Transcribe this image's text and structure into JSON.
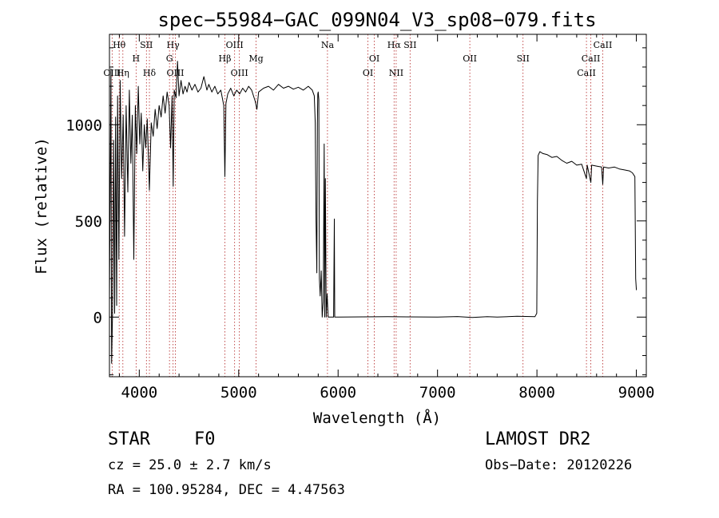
{
  "chart_data": {
    "type": "line",
    "title": "spec−55984−GAC_099N04_V3_sp08−079.fits",
    "xlabel": "Wavelength (Å)",
    "ylabel": "Flux (relative)",
    "xlim": [
      3700,
      9100
    ],
    "ylim": [
      -310,
      1470
    ],
    "xticks": [
      4000,
      5000,
      6000,
      7000,
      8000,
      9000
    ],
    "xtick_labels": [
      "4000",
      "5000",
      "6000",
      "7000",
      "8000",
      "9000"
    ],
    "yticks": [
      0,
      500,
      1000
    ],
    "ytick_labels": [
      "0",
      "500",
      "1000"
    ],
    "grid": false,
    "series": [
      {
        "points": [
          [
            3700,
            80
          ],
          [
            3715,
            1290
          ],
          [
            3722,
            -240
          ],
          [
            3732,
            50
          ],
          [
            3742,
            920
          ],
          [
            3752,
            20
          ],
          [
            3762,
            1040
          ],
          [
            3772,
            60
          ],
          [
            3782,
            1150
          ],
          [
            3795,
            300
          ],
          [
            3808,
            1230
          ],
          [
            3822,
            720
          ],
          [
            3838,
            1050
          ],
          [
            3852,
            420
          ],
          [
            3868,
            1100
          ],
          [
            3885,
            650
          ],
          [
            3900,
            1180
          ],
          [
            3915,
            800
          ],
          [
            3930,
            1050
          ],
          [
            3945,
            300
          ],
          [
            3960,
            1100
          ],
          [
            3975,
            850
          ],
          [
            3990,
            1200
          ],
          [
            4005,
            900
          ],
          [
            4020,
            1060
          ],
          [
            4035,
            760
          ],
          [
            4050,
            1000
          ],
          [
            4065,
            880
          ],
          [
            4080,
            1030
          ],
          [
            4102,
            660
          ],
          [
            4120,
            1010
          ],
          [
            4140,
            940
          ],
          [
            4160,
            1080
          ],
          [
            4180,
            980
          ],
          [
            4200,
            1100
          ],
          [
            4220,
            1040
          ],
          [
            4240,
            1150
          ],
          [
            4260,
            1060
          ],
          [
            4280,
            1170
          ],
          [
            4300,
            1100
          ],
          [
            4315,
            880
          ],
          [
            4330,
            1150
          ],
          [
            4341,
            680
          ],
          [
            4352,
            1180
          ],
          [
            4370,
            1140
          ],
          [
            4385,
            1330
          ],
          [
            4400,
            1150
          ],
          [
            4420,
            1230
          ],
          [
            4440,
            1160
          ],
          [
            4460,
            1200
          ],
          [
            4480,
            1170
          ],
          [
            4500,
            1220
          ],
          [
            4530,
            1180
          ],
          [
            4560,
            1210
          ],
          [
            4590,
            1170
          ],
          [
            4620,
            1190
          ],
          [
            4650,
            1250
          ],
          [
            4680,
            1180
          ],
          [
            4700,
            1210
          ],
          [
            4730,
            1170
          ],
          [
            4760,
            1200
          ],
          [
            4790,
            1160
          ],
          [
            4820,
            1180
          ],
          [
            4850,
            1100
          ],
          [
            4861,
            730
          ],
          [
            4872,
            1110
          ],
          [
            4890,
            1160
          ],
          [
            4920,
            1190
          ],
          [
            4950,
            1150
          ],
          [
            4980,
            1180
          ],
          [
            5010,
            1160
          ],
          [
            5040,
            1190
          ],
          [
            5070,
            1170
          ],
          [
            5100,
            1200
          ],
          [
            5130,
            1180
          ],
          [
            5167,
            1120
          ],
          [
            5183,
            1080
          ],
          [
            5200,
            1170
          ],
          [
            5250,
            1190
          ],
          [
            5300,
            1200
          ],
          [
            5350,
            1180
          ],
          [
            5400,
            1210
          ],
          [
            5450,
            1190
          ],
          [
            5500,
            1200
          ],
          [
            5550,
            1185
          ],
          [
            5600,
            1195
          ],
          [
            5650,
            1180
          ],
          [
            5700,
            1200
          ],
          [
            5740,
            1180
          ],
          [
            5760,
            1150
          ],
          [
            5770,
            1010
          ],
          [
            5778,
            500
          ],
          [
            5786,
            230
          ],
          [
            5792,
            1010
          ],
          [
            5796,
            1160
          ],
          [
            5800,
            1170
          ],
          [
            5806,
            1130
          ],
          [
            5812,
            200
          ],
          [
            5820,
            110
          ],
          [
            5830,
            240
          ],
          [
            5840,
            0
          ],
          [
            5850,
            80
          ],
          [
            5860,
            900
          ],
          [
            5866,
            0
          ],
          [
            5872,
            720
          ],
          [
            5880,
            0
          ],
          [
            5890,
            120
          ],
          [
            5900,
            0
          ],
          [
            5930,
            0
          ],
          [
            5955,
            0
          ],
          [
            5962,
            510
          ],
          [
            5966,
            0
          ],
          [
            6000,
            0
          ],
          [
            6500,
            2
          ],
          [
            7000,
            0
          ],
          [
            7200,
            3
          ],
          [
            7350,
            -2
          ],
          [
            7500,
            2
          ],
          [
            7600,
            0
          ],
          [
            7800,
            4
          ],
          [
            7980,
            2
          ],
          [
            7998,
            20
          ],
          [
            8005,
            600
          ],
          [
            8012,
            840
          ],
          [
            8030,
            860
          ],
          [
            8060,
            850
          ],
          [
            8100,
            845
          ],
          [
            8150,
            830
          ],
          [
            8200,
            835
          ],
          [
            8250,
            815
          ],
          [
            8300,
            800
          ],
          [
            8350,
            810
          ],
          [
            8400,
            790
          ],
          [
            8450,
            795
          ],
          [
            8498,
            720
          ],
          [
            8505,
            790
          ],
          [
            8542,
            700
          ],
          [
            8550,
            790
          ],
          [
            8600,
            785
          ],
          [
            8650,
            780
          ],
          [
            8662,
            690
          ],
          [
            8670,
            780
          ],
          [
            8720,
            775
          ],
          [
            8780,
            780
          ],
          [
            8830,
            770
          ],
          [
            8880,
            765
          ],
          [
            8930,
            760
          ],
          [
            8960,
            750
          ],
          [
            8985,
            730
          ],
          [
            8993,
            200
          ],
          [
            9000,
            140
          ]
        ]
      }
    ],
    "lines": [
      {
        "label": "Hθ",
        "x": 3798,
        "row": 0
      },
      {
        "label": "OIII",
        "x": 3727,
        "row": 2
      },
      {
        "label": "Hη",
        "x": 3835,
        "row": 2
      },
      {
        "label": "H",
        "x": 3968,
        "row": 1
      },
      {
        "label": "SII",
        "x": 4072,
        "row": 0
      },
      {
        "label": "Hδ",
        "x": 4102,
        "row": 2
      },
      {
        "label": "Hγ",
        "x": 4340,
        "row": 0
      },
      {
        "label": "G",
        "x": 4304,
        "row": 1
      },
      {
        "label": "OIII",
        "x": 4363,
        "row": 2
      },
      {
        "label": "OIII",
        "x": 4959,
        "row": 0
      },
      {
        "label": "Hβ",
        "x": 4861,
        "row": 1
      },
      {
        "label": "OIII",
        "x": 5007,
        "row": 2
      },
      {
        "label": "Mg",
        "x": 5175,
        "row": 1
      },
      {
        "label": "Na",
        "x": 5893,
        "row": 0
      },
      {
        "label": "OI",
        "x": 6364,
        "row": 1
      },
      {
        "label": "OI",
        "x": 6300,
        "row": 2
      },
      {
        "label": "Hα",
        "x": 6563,
        "row": 0
      },
      {
        "label": "SII",
        "x": 6724,
        "row": 0
      },
      {
        "label": "NII",
        "x": 6584,
        "row": 2
      },
      {
        "label": "OII",
        "x": 7325,
        "row": 1
      },
      {
        "label": "SII",
        "x": 7860,
        "row": 1
      },
      {
        "label": "CaII",
        "x": 8662,
        "row": 0
      },
      {
        "label": "CaII",
        "x": 8542,
        "row": 1
      },
      {
        "label": "CaII",
        "x": 8498,
        "row": 2
      }
    ]
  },
  "info": {
    "class": "STAR",
    "subclass": "F0",
    "cz": "cz = 25.0 ± 2.7 km/s",
    "coords": "RA = 100.95284, DEC =   4.47563",
    "survey": "LAMOST DR2",
    "obs_date": "Obs−Date: 20120226"
  }
}
